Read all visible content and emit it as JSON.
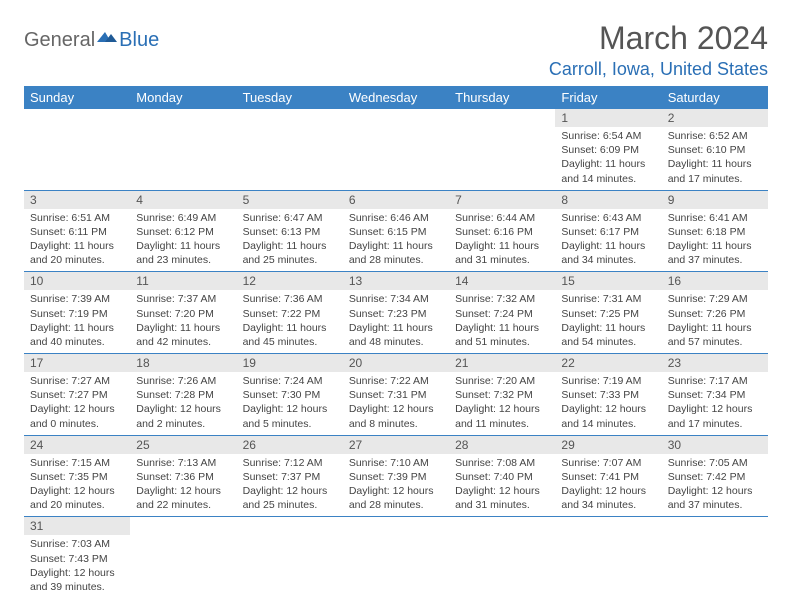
{
  "logo": {
    "part1": "General",
    "part2": "Blue"
  },
  "title": "March 2024",
  "location": "Carroll, Iowa, United States",
  "colors": {
    "header_bg": "#3b82c4",
    "header_text": "#ffffff",
    "daynum_bg": "#e8e8e8",
    "border": "#3b82c4",
    "title_color": "#555555",
    "location_color": "#2a6fb5"
  },
  "weekdays": [
    "Sunday",
    "Monday",
    "Tuesday",
    "Wednesday",
    "Thursday",
    "Friday",
    "Saturday"
  ],
  "weeks": [
    [
      null,
      null,
      null,
      null,
      null,
      {
        "n": "1",
        "sunrise": "Sunrise: 6:54 AM",
        "sunset": "Sunset: 6:09 PM",
        "daylight": "Daylight: 11 hours and 14 minutes."
      },
      {
        "n": "2",
        "sunrise": "Sunrise: 6:52 AM",
        "sunset": "Sunset: 6:10 PM",
        "daylight": "Daylight: 11 hours and 17 minutes."
      }
    ],
    [
      {
        "n": "3",
        "sunrise": "Sunrise: 6:51 AM",
        "sunset": "Sunset: 6:11 PM",
        "daylight": "Daylight: 11 hours and 20 minutes."
      },
      {
        "n": "4",
        "sunrise": "Sunrise: 6:49 AM",
        "sunset": "Sunset: 6:12 PM",
        "daylight": "Daylight: 11 hours and 23 minutes."
      },
      {
        "n": "5",
        "sunrise": "Sunrise: 6:47 AM",
        "sunset": "Sunset: 6:13 PM",
        "daylight": "Daylight: 11 hours and 25 minutes."
      },
      {
        "n": "6",
        "sunrise": "Sunrise: 6:46 AM",
        "sunset": "Sunset: 6:15 PM",
        "daylight": "Daylight: 11 hours and 28 minutes."
      },
      {
        "n": "7",
        "sunrise": "Sunrise: 6:44 AM",
        "sunset": "Sunset: 6:16 PM",
        "daylight": "Daylight: 11 hours and 31 minutes."
      },
      {
        "n": "8",
        "sunrise": "Sunrise: 6:43 AM",
        "sunset": "Sunset: 6:17 PM",
        "daylight": "Daylight: 11 hours and 34 minutes."
      },
      {
        "n": "9",
        "sunrise": "Sunrise: 6:41 AM",
        "sunset": "Sunset: 6:18 PM",
        "daylight": "Daylight: 11 hours and 37 minutes."
      }
    ],
    [
      {
        "n": "10",
        "sunrise": "Sunrise: 7:39 AM",
        "sunset": "Sunset: 7:19 PM",
        "daylight": "Daylight: 11 hours and 40 minutes."
      },
      {
        "n": "11",
        "sunrise": "Sunrise: 7:37 AM",
        "sunset": "Sunset: 7:20 PM",
        "daylight": "Daylight: 11 hours and 42 minutes."
      },
      {
        "n": "12",
        "sunrise": "Sunrise: 7:36 AM",
        "sunset": "Sunset: 7:22 PM",
        "daylight": "Daylight: 11 hours and 45 minutes."
      },
      {
        "n": "13",
        "sunrise": "Sunrise: 7:34 AM",
        "sunset": "Sunset: 7:23 PM",
        "daylight": "Daylight: 11 hours and 48 minutes."
      },
      {
        "n": "14",
        "sunrise": "Sunrise: 7:32 AM",
        "sunset": "Sunset: 7:24 PM",
        "daylight": "Daylight: 11 hours and 51 minutes."
      },
      {
        "n": "15",
        "sunrise": "Sunrise: 7:31 AM",
        "sunset": "Sunset: 7:25 PM",
        "daylight": "Daylight: 11 hours and 54 minutes."
      },
      {
        "n": "16",
        "sunrise": "Sunrise: 7:29 AM",
        "sunset": "Sunset: 7:26 PM",
        "daylight": "Daylight: 11 hours and 57 minutes."
      }
    ],
    [
      {
        "n": "17",
        "sunrise": "Sunrise: 7:27 AM",
        "sunset": "Sunset: 7:27 PM",
        "daylight": "Daylight: 12 hours and 0 minutes."
      },
      {
        "n": "18",
        "sunrise": "Sunrise: 7:26 AM",
        "sunset": "Sunset: 7:28 PM",
        "daylight": "Daylight: 12 hours and 2 minutes."
      },
      {
        "n": "19",
        "sunrise": "Sunrise: 7:24 AM",
        "sunset": "Sunset: 7:30 PM",
        "daylight": "Daylight: 12 hours and 5 minutes."
      },
      {
        "n": "20",
        "sunrise": "Sunrise: 7:22 AM",
        "sunset": "Sunset: 7:31 PM",
        "daylight": "Daylight: 12 hours and 8 minutes."
      },
      {
        "n": "21",
        "sunrise": "Sunrise: 7:20 AM",
        "sunset": "Sunset: 7:32 PM",
        "daylight": "Daylight: 12 hours and 11 minutes."
      },
      {
        "n": "22",
        "sunrise": "Sunrise: 7:19 AM",
        "sunset": "Sunset: 7:33 PM",
        "daylight": "Daylight: 12 hours and 14 minutes."
      },
      {
        "n": "23",
        "sunrise": "Sunrise: 7:17 AM",
        "sunset": "Sunset: 7:34 PM",
        "daylight": "Daylight: 12 hours and 17 minutes."
      }
    ],
    [
      {
        "n": "24",
        "sunrise": "Sunrise: 7:15 AM",
        "sunset": "Sunset: 7:35 PM",
        "daylight": "Daylight: 12 hours and 20 minutes."
      },
      {
        "n": "25",
        "sunrise": "Sunrise: 7:13 AM",
        "sunset": "Sunset: 7:36 PM",
        "daylight": "Daylight: 12 hours and 22 minutes."
      },
      {
        "n": "26",
        "sunrise": "Sunrise: 7:12 AM",
        "sunset": "Sunset: 7:37 PM",
        "daylight": "Daylight: 12 hours and 25 minutes."
      },
      {
        "n": "27",
        "sunrise": "Sunrise: 7:10 AM",
        "sunset": "Sunset: 7:39 PM",
        "daylight": "Daylight: 12 hours and 28 minutes."
      },
      {
        "n": "28",
        "sunrise": "Sunrise: 7:08 AM",
        "sunset": "Sunset: 7:40 PM",
        "daylight": "Daylight: 12 hours and 31 minutes."
      },
      {
        "n": "29",
        "sunrise": "Sunrise: 7:07 AM",
        "sunset": "Sunset: 7:41 PM",
        "daylight": "Daylight: 12 hours and 34 minutes."
      },
      {
        "n": "30",
        "sunrise": "Sunrise: 7:05 AM",
        "sunset": "Sunset: 7:42 PM",
        "daylight": "Daylight: 12 hours and 37 minutes."
      }
    ],
    [
      {
        "n": "31",
        "sunrise": "Sunrise: 7:03 AM",
        "sunset": "Sunset: 7:43 PM",
        "daylight": "Daylight: 12 hours and 39 minutes."
      },
      null,
      null,
      null,
      null,
      null,
      null
    ]
  ]
}
